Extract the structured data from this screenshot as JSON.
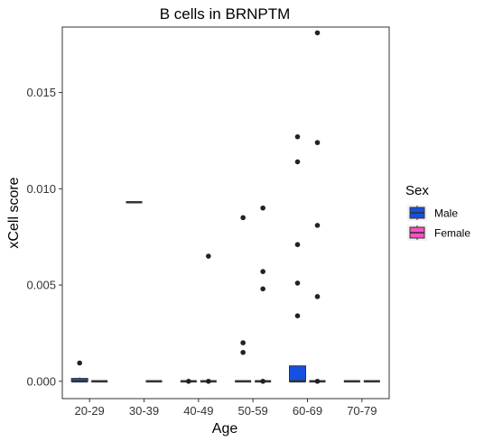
{
  "chart_data": {
    "type": "box",
    "title": "B cells in BRNPTM",
    "xlabel": "Age",
    "ylabel": "xCell score",
    "categories": [
      "20-29",
      "30-39",
      "40-49",
      "50-59",
      "60-69",
      "70-79"
    ],
    "ylim": [
      -0.0009,
      0.0184
    ],
    "yticks": [
      0.0,
      0.005,
      0.01,
      0.015
    ],
    "ytick_labels": [
      "0.000",
      "0.005",
      "0.010",
      "0.015"
    ],
    "grid": false,
    "legend": {
      "title": "Sex",
      "position": "right",
      "entries": [
        {
          "name": "Male",
          "color": "#1650E0"
        },
        {
          "name": "Female",
          "color": "#FF4FC3"
        }
      ]
    },
    "series": [
      {
        "name": "Male",
        "color": "#1650E0",
        "boxes": [
          {
            "category": "20-29",
            "q1": 0.0,
            "median": 0.0,
            "q3": 0.00015,
            "whisker_low": 0.0,
            "whisker_high": 0.0002,
            "outliers": [
              0.00095
            ]
          },
          {
            "category": "30-39",
            "q1": 0.0093,
            "median": 0.0093,
            "q3": 0.0093,
            "whisker_low": 0.0093,
            "whisker_high": 0.0093,
            "outliers": []
          },
          {
            "category": "40-49",
            "q1": 0.0,
            "median": 0.0,
            "q3": 0.0,
            "whisker_low": 0.0,
            "whisker_high": 0.0,
            "outliers": [
              0.0
            ]
          },
          {
            "category": "50-59",
            "q1": 0.0,
            "median": 0.0,
            "q3": 0.0,
            "whisker_low": 0.0,
            "whisker_high": 0.0,
            "outliers": [
              0.0085,
              0.002,
              0.0015
            ]
          },
          {
            "category": "60-69",
            "q1": 0.0,
            "median": 0.0,
            "q3": 0.0008,
            "whisker_low": 0.0,
            "whisker_high": 0.0008,
            "outliers": [
              0.0127,
              0.0114,
              0.0071,
              0.0051,
              0.0034
            ]
          },
          {
            "category": "70-79",
            "q1": 0.0,
            "median": 0.0,
            "q3": 0.0,
            "whisker_low": 0.0,
            "whisker_high": 0.0,
            "outliers": []
          }
        ]
      },
      {
        "name": "Female",
        "color": "#FF4FC3",
        "boxes": [
          {
            "category": "20-29",
            "q1": 0.0,
            "median": 0.0,
            "q3": 0.0,
            "whisker_low": 0.0,
            "whisker_high": 0.0,
            "outliers": []
          },
          {
            "category": "30-39",
            "q1": 0.0,
            "median": 0.0,
            "q3": 0.0,
            "whisker_low": 0.0,
            "whisker_high": 0.0,
            "outliers": []
          },
          {
            "category": "40-49",
            "q1": 0.0,
            "median": 0.0,
            "q3": 0.0,
            "whisker_low": 0.0,
            "whisker_high": 0.0,
            "outliers": [
              0.0065,
              0.0
            ]
          },
          {
            "category": "50-59",
            "q1": 0.0,
            "median": 0.0,
            "q3": 0.0,
            "whisker_low": 0.0,
            "whisker_high": 0.0,
            "outliers": [
              0.009,
              0.0057,
              0.0048,
              0.0
            ]
          },
          {
            "category": "60-69",
            "q1": 0.0,
            "median": 0.0,
            "q3": 0.0,
            "whisker_low": 0.0,
            "whisker_high": 0.0,
            "outliers": [
              0.0181,
              0.0124,
              0.0081,
              0.0044,
              0.0
            ]
          },
          {
            "category": "70-79",
            "q1": 0.0,
            "median": 0.0,
            "q3": 0.0,
            "whisker_low": 0.0,
            "whisker_high": 0.0,
            "outliers": []
          }
        ]
      }
    ]
  }
}
